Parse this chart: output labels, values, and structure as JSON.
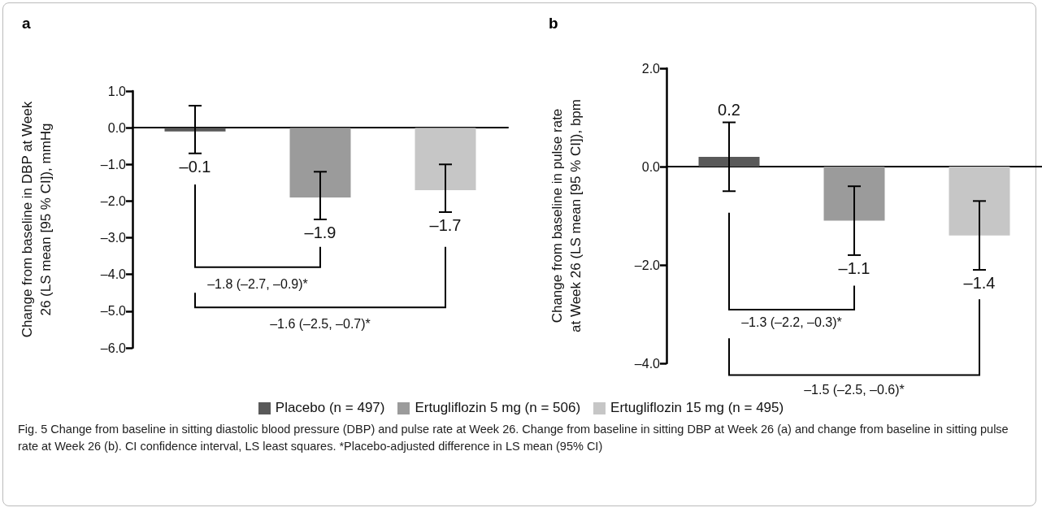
{
  "chart_data": [
    {
      "type": "bar",
      "title": "a",
      "ylabel": "Change from baseline in DBP at Week 26 (LS mean [95 % CI]), mmHg",
      "categories": [
        null,
        null,
        null
      ],
      "series": [
        {
          "name": "Placebo (n = 497)",
          "color": "#595959",
          "values": [
            -0.1,
            null,
            null
          ],
          "errors": [
            [
              -0.7,
              0.6
            ],
            null,
            null
          ],
          "value_labels": [
            "–0.1",
            null,
            null
          ]
        },
        {
          "name": "Ertugliflozin 5 mg (n = 506)",
          "color": "#9b9b9b",
          "values": [
            null,
            -1.9,
            null
          ],
          "errors": [
            null,
            [
              -2.5,
              -1.2
            ],
            null
          ],
          "value_labels": [
            null,
            "–1.9",
            null
          ]
        },
        {
          "name": "Ertugliflozin 15 mg (n = 495)",
          "color": "#c6c6c6",
          "values": [
            null,
            null,
            -1.7
          ],
          "errors": [
            null,
            null,
            [
              -2.3,
              -1.0
            ]
          ],
          "value_labels": [
            null,
            null,
            "–1.7"
          ]
        }
      ],
      "ylim": [
        -6,
        1
      ],
      "yticks": [
        {
          "value": -6,
          "label": "–6.0"
        },
        {
          "value": -5,
          "label": "–5.0"
        },
        {
          "value": -4,
          "label": "–4.0"
        },
        {
          "value": -3,
          "label": "–3.0"
        },
        {
          "value": -2,
          "label": "–2.0"
        },
        {
          "value": -1,
          "label": "–1.0"
        },
        {
          "value": 0,
          "label": "0.0"
        },
        {
          "value": 1,
          "label": "1.0"
        }
      ],
      "legend": "bottom",
      "annotations": [
        "–1.8 (–2.7, –0.9)*",
        "–1.6 (–2.5, –0.7)*",
        "Fig. 5  Change from baseline in sitting diastolic blood pressure (DBP) and pulse rate at Week 26. Change from baseline in sitting DBP at Week 26 (a) and change from baseline in sitting pulse rate at Week 26 (b). CI confidence interval, LS least squares. *Placebo-adjusted difference in LS mean (95% CI)"
      ]
    },
    {
      "type": "bar",
      "title": "b",
      "ylabel": "Change from baseline in pulse rate at Week 26 (LS mean [95 % CI]), bpm",
      "categories": [
        null,
        null,
        null
      ],
      "series": [
        {
          "color": "#595959",
          "values": [
            0.2,
            null,
            null
          ],
          "errors": [
            [
              -0.5,
              0.9
            ],
            null,
            null
          ],
          "value_labels": [
            "0.2",
            null,
            null
          ]
        },
        {
          "color": "#9b9b9b",
          "values": [
            null,
            -1.1,
            null
          ],
          "errors": [
            null,
            [
              -1.8,
              -0.4
            ],
            null
          ],
          "value_labels": [
            null,
            "–1.1",
            null
          ]
        },
        {
          "color": "#c6c6c6",
          "values": [
            null,
            null,
            -1.4
          ],
          "errors": [
            null,
            null,
            [
              -2.1,
              -0.7
            ]
          ],
          "value_labels": [
            null,
            null,
            "–1.4"
          ]
        }
      ],
      "ylim": [
        -4,
        2
      ],
      "yticks": [
        {
          "value": -4,
          "label": "–4.0"
        },
        {
          "value": -2,
          "label": "–2.0"
        },
        {
          "value": 0,
          "label": "0.0"
        },
        {
          "value": 2,
          "label": "2.0"
        }
      ],
      "annotations": [
        "–1.3 (–2.2, –0.3)*",
        "–1.5 (–2.5, –0.6)*"
      ]
    }
  ]
}
